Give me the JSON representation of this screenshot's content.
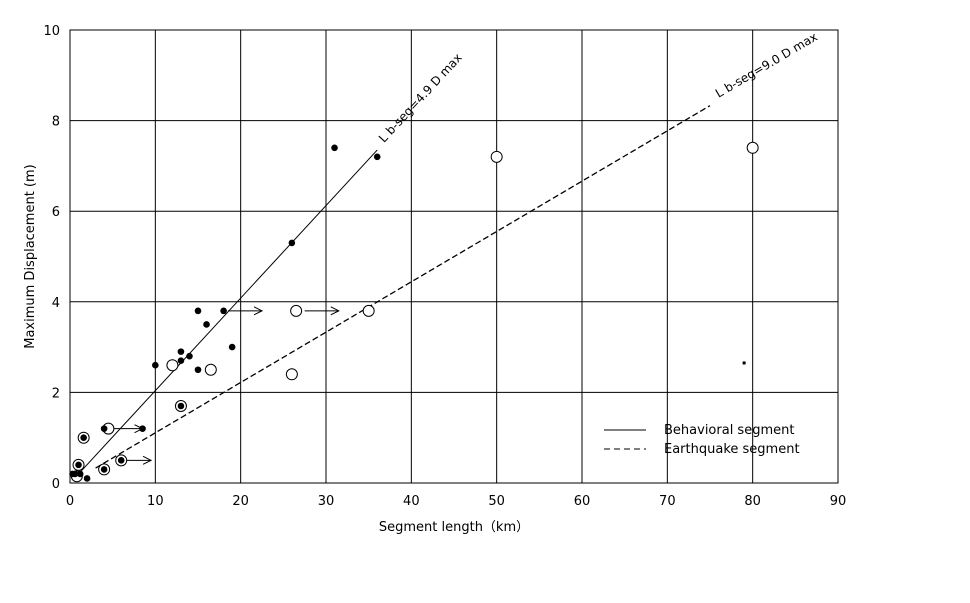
{
  "chart_data": {
    "type": "scatter",
    "xlabel": "Segment length（km）",
    "ylabel": "Maximum Displacement (m)",
    "xlim": [
      0,
      90
    ],
    "ylim": [
      0,
      10
    ],
    "xticks": [
      0,
      10,
      20,
      30,
      40,
      50,
      60,
      70,
      80,
      90
    ],
    "yticks": [
      0,
      2,
      4,
      6,
      8,
      10
    ],
    "grid": true,
    "legend_position": "bottom-right",
    "series": [
      {
        "name": "Behavioral segment",
        "kind": "filled",
        "points": [
          {
            "x": 0.3,
            "y": 0.2
          },
          {
            "x": 0.6,
            "y": 0.2
          },
          {
            "x": 1.0,
            "y": 0.4
          },
          {
            "x": 1.2,
            "y": 0.2
          },
          {
            "x": 1.6,
            "y": 1.0
          },
          {
            "x": 2.0,
            "y": 0.1
          },
          {
            "x": 4.0,
            "y": 0.3
          },
          {
            "x": 4.0,
            "y": 1.2
          },
          {
            "x": 6.0,
            "y": 0.5
          },
          {
            "x": 8.5,
            "y": 1.2
          },
          {
            "x": 10.0,
            "y": 2.6
          },
          {
            "x": 13.0,
            "y": 1.7
          },
          {
            "x": 13.0,
            "y": 2.7
          },
          {
            "x": 13.0,
            "y": 2.9
          },
          {
            "x": 14.0,
            "y": 2.8
          },
          {
            "x": 15.0,
            "y": 2.5
          },
          {
            "x": 15.0,
            "y": 3.8
          },
          {
            "x": 16.0,
            "y": 3.5
          },
          {
            "x": 18.0,
            "y": 3.8
          },
          {
            "x": 19.0,
            "y": 3.0
          },
          {
            "x": 26.0,
            "y": 5.3
          },
          {
            "x": 31.0,
            "y": 7.4
          },
          {
            "x": 36.0,
            "y": 7.2
          }
        ]
      },
      {
        "name": "Earthquake segment",
        "kind": "open",
        "points": [
          {
            "x": 0.8,
            "y": 0.15
          },
          {
            "x": 1.0,
            "y": 0.4
          },
          {
            "x": 1.6,
            "y": 1.0
          },
          {
            "x": 4.0,
            "y": 0.3
          },
          {
            "x": 4.5,
            "y": 1.2
          },
          {
            "x": 6.0,
            "y": 0.5
          },
          {
            "x": 12.0,
            "y": 2.6
          },
          {
            "x": 13.0,
            "y": 1.7
          },
          {
            "x": 16.5,
            "y": 2.5
          },
          {
            "x": 26.0,
            "y": 2.4
          },
          {
            "x": 26.5,
            "y": 3.8
          },
          {
            "x": 35.0,
            "y": 3.8
          },
          {
            "x": 50.0,
            "y": 7.2
          },
          {
            "x": 80.0,
            "y": 7.4
          }
        ]
      }
    ],
    "arrows": [
      {
        "x1": 18.5,
        "x2": 22.5,
        "y": 3.8
      },
      {
        "x1": 27.5,
        "x2": 31.5,
        "y": 3.8
      },
      {
        "x1": 4.8,
        "x2": 8.5,
        "y": 1.2
      },
      {
        "x1": 6.5,
        "x2": 9.5,
        "y": 0.5
      }
    ],
    "fit_lines": [
      {
        "name": "Behavioral segment",
        "style": "solid",
        "from": [
          1.0,
          0.2
        ],
        "to": [
          36.0,
          7.35
        ],
        "label": "L b-seg=4.9 D max",
        "label_at": [
          36.8,
          7.5
        ]
      },
      {
        "name": "Earthquake segment",
        "style": "dashed",
        "from": [
          3.0,
          0.33
        ],
        "to": [
          75.0,
          8.33
        ],
        "label": "L b-seg=9.0 D max",
        "label_at": [
          76.0,
          8.5
        ]
      }
    ],
    "stray_mark": {
      "x": 79.0,
      "y": 2.65
    }
  }
}
